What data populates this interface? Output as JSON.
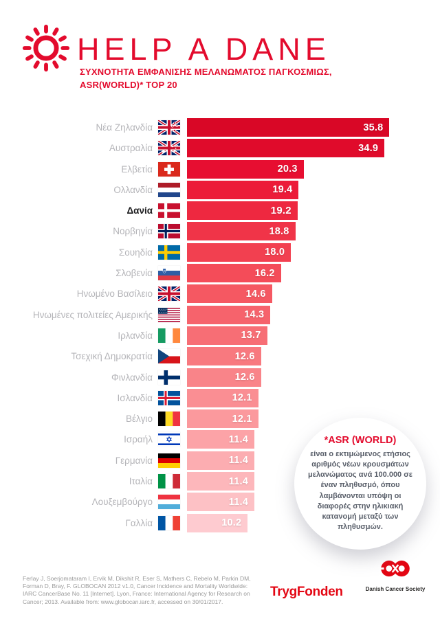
{
  "header": {
    "title": "HELP A DANE",
    "subtitle_line1": "ΣΥΧΝΟΤΗΤΑ ΕΜΦΑΝΙΣΗΣ ΜΕΛΑΝΩΜΑΤΟΣ ΠΑΓΚΟΣΜΙΩΣ,",
    "subtitle_line2": "ASR(WORLD)* TOP 20",
    "brand_color": "#e30b2d"
  },
  "chart_data": {
    "type": "bar",
    "orientation": "horizontal",
    "title": "ΣΥΧΝΟΤΗΤΑ ΕΜΦΑΝΙΣΗΣ ΜΕΛΑΝΩΜΑΤΟΣ ΠΑΓΚΟΣΜΙΩΣ, ASR(WORLD)* TOP 20",
    "xlabel": "",
    "ylabel": "",
    "xlim": [
      0,
      35.8
    ],
    "grid": false,
    "legend": "none",
    "highlighted_category": "Δανία",
    "bar_color_gradient": [
      "#d90726",
      "#fecbd0"
    ],
    "rows": [
      {
        "country": "Νέα Ζηλανδία",
        "flag": "new-zealand",
        "value": 35.8,
        "value_label": "35.8",
        "color": "#d90726",
        "highlight": false
      },
      {
        "country": "Αυστραλία",
        "flag": "australia",
        "value": 34.9,
        "value_label": "34.9",
        "color": "#e00b2b",
        "highlight": false
      },
      {
        "country": "Ελβετία",
        "flag": "switzerland",
        "value": 20.3,
        "value_label": "20.3",
        "color": "#e70e31",
        "highlight": false
      },
      {
        "country": "Ολλανδία",
        "flag": "netherlands",
        "value": 19.4,
        "value_label": "19.4",
        "color": "#ec1c39",
        "highlight": false
      },
      {
        "country": "Δανία",
        "flag": "denmark",
        "value": 19.2,
        "value_label": "19.2",
        "color": "#ee2840",
        "highlight": true
      },
      {
        "country": "Νορβηγία",
        "flag": "norway",
        "value": 18.8,
        "value_label": "18.8",
        "color": "#f03448",
        "highlight": false
      },
      {
        "country": "Σουηδία",
        "flag": "sweden",
        "value": 18.0,
        "value_label": "18.0",
        "color": "#f24050",
        "highlight": false
      },
      {
        "country": "Σλοβενία",
        "flag": "slovenia",
        "value": 16.2,
        "value_label": "16.2",
        "color": "#f44c59",
        "highlight": false
      },
      {
        "country": "Ηνωμένο Βασίλειο",
        "flag": "united-kingdom",
        "value": 14.6,
        "value_label": "14.6",
        "color": "#f55862",
        "highlight": false
      },
      {
        "country": "Ηνωμένες πολιτείες Αμερικής",
        "flag": "usa",
        "value": 14.3,
        "value_label": "14.3",
        "color": "#f6636c",
        "highlight": false
      },
      {
        "country": "Ιρλανδία",
        "flag": "ireland",
        "value": 13.7,
        "value_label": "13.7",
        "color": "#f76e75",
        "highlight": false
      },
      {
        "country": "Τσεχική Δημοκρατία",
        "flag": "czech-republic",
        "value": 12.6,
        "value_label": "12.6",
        "color": "#f8797f",
        "highlight": false
      },
      {
        "country": "Φινλανδία",
        "flag": "finland",
        "value": 12.6,
        "value_label": "12.6",
        "color": "#f98489",
        "highlight": false
      },
      {
        "country": "Ισλανδία",
        "flag": "iceland",
        "value": 12.1,
        "value_label": "12.1",
        "color": "#fa8e93",
        "highlight": false
      },
      {
        "country": "Βέλγιο",
        "flag": "belgium",
        "value": 12.1,
        "value_label": "12.1",
        "color": "#fb999d",
        "highlight": false
      },
      {
        "country": "Ισραήλ",
        "flag": "israel",
        "value": 11.4,
        "value_label": "11.4",
        "color": "#fca3a7",
        "highlight": false
      },
      {
        "country": "Γερμανία",
        "flag": "germany",
        "value": 11.4,
        "value_label": "11.4",
        "color": "#fcadb1",
        "highlight": false
      },
      {
        "country": "Ιταλία",
        "flag": "italy",
        "value": 11.4,
        "value_label": "11.4",
        "color": "#fdb7bb",
        "highlight": false
      },
      {
        "country": "Λουξεμβούργο",
        "flag": "luxembourg",
        "value": 11.4,
        "value_label": "11.4",
        "color": "#fdc1c5",
        "highlight": false
      },
      {
        "country": "Γαλλία",
        "flag": "france",
        "value": 10.2,
        "value_label": "10.2",
        "color": "#fecbd0",
        "highlight": false
      }
    ]
  },
  "note_bubble": {
    "title": "*ASR (WORLD)",
    "body": "είναι ο εκτιμώμενος ετήσιος αριθμός νέων κρουσμάτων μελανώματος ανά 100.000 σε έναν πληθυσμό, όπου λαμβάνονται υπόψη οι διαφορές στην ηλικιακή κατανομή μεταξύ των πληθυσμών."
  },
  "footer": {
    "citation_lines": [
      "Ferlay J, Soerjomataram I, Ervik M, Dikshit R, Eser S, Mathers C, Rebelo M, Parkin DM,",
      "Forman D, Bray, F. GLOBOCAN 2012 v1.0, Cancer Incidence and Mortality Worldwide:",
      "IARC CancerBase No. 11 [Internet]. Lyon, France: International Agency for Research on",
      "Cancer; 2013. Available from: www.globocan.iarc.fr, accessed on 30/01/2017."
    ],
    "trygfonden_label": "TrygFonden",
    "dcs_label": "Danish Cancer Society"
  }
}
